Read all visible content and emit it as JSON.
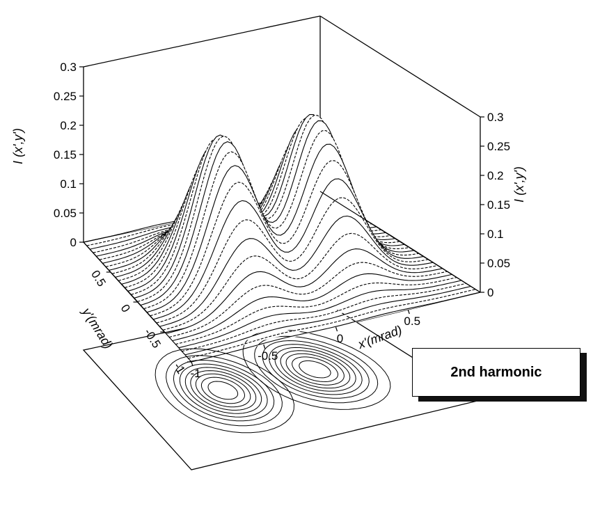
{
  "chart_data": {
    "type": "surface",
    "title": "2nd harmonic",
    "zlabel": "I (x',y')",
    "xlabel": "x'(mrad)",
    "ylabel": "y'(mrad)",
    "xlim": [
      -1,
      1
    ],
    "ylim": [
      -1,
      1
    ],
    "zlim": [
      0,
      0.3
    ],
    "x_ticks": [
      "-1",
      "-0.5",
      "0",
      "0.5"
    ],
    "y_ticks": [
      "0.5",
      "0",
      "-0.5",
      "-1"
    ],
    "z_ticks_left": [
      "0",
      "0.05",
      "0.1",
      "0.15",
      "0.2",
      "0.25",
      "0.3"
    ],
    "z_ticks_right": [
      "0",
      "0.05",
      "0.1",
      "0.15",
      "0.2",
      "0.25",
      "0.3"
    ],
    "peaks": [
      {
        "x": -0.35,
        "y": 0,
        "z": 0.25
      },
      {
        "x": 0.35,
        "y": 0,
        "z": 0.25
      }
    ],
    "contour_projection": true,
    "grid": false
  }
}
